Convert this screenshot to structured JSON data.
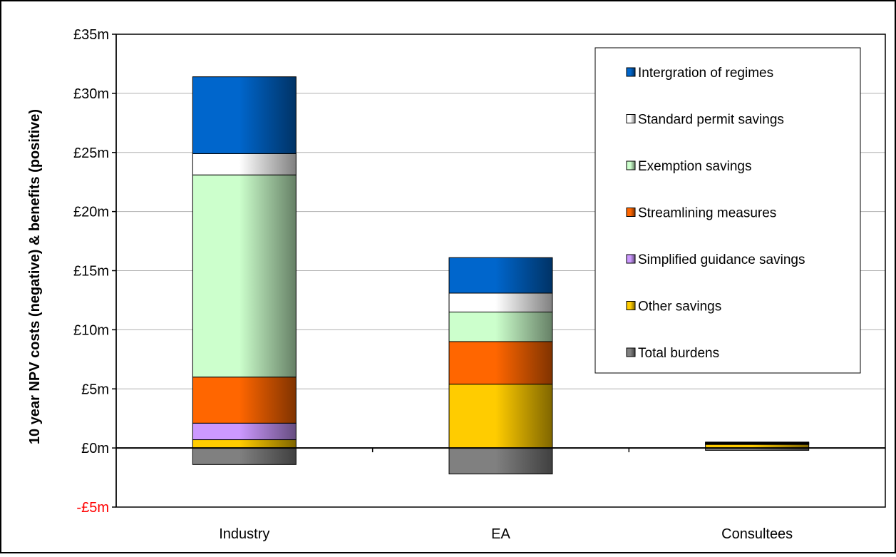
{
  "chart_data": {
    "type": "bar",
    "stacked": true,
    "ylabel": "10 year NPV costs (negative) & benefits (positive)",
    "xlabel": "",
    "categories": [
      "Industry",
      "EA",
      "Consultees"
    ],
    "ylim": [
      -5,
      35
    ],
    "yticks": [
      {
        "value": -5,
        "label": "-£5m",
        "color": "#ff0000"
      },
      {
        "value": 0,
        "label": "£0m"
      },
      {
        "value": 5,
        "label": "£5m"
      },
      {
        "value": 10,
        "label": "£10m"
      },
      {
        "value": 15,
        "label": "£15m"
      },
      {
        "value": 20,
        "label": "£20m"
      },
      {
        "value": 25,
        "label": "£25m"
      },
      {
        "value": 30,
        "label": "£30m"
      },
      {
        "value": 35,
        "label": "£35m"
      }
    ],
    "grid": true,
    "legend_position": "top-right",
    "series": [
      {
        "name": "Total burdens",
        "color": "#808080",
        "values": [
          -1.4,
          -2.2,
          -0.2
        ]
      },
      {
        "name": "Other savings",
        "color": "#ffcc00",
        "values": [
          0.7,
          5.4,
          0.3
        ]
      },
      {
        "name": "Simplified guidance savings",
        "color": "#cc99ff",
        "values": [
          1.4,
          0,
          0
        ]
      },
      {
        "name": "Streamlining measures",
        "color": "#ff6600",
        "values": [
          3.9,
          3.6,
          0.05
        ]
      },
      {
        "name": "Exemption savings",
        "color": "#ccffcc",
        "values": [
          17.1,
          2.5,
          0.05
        ]
      },
      {
        "name": "Standard permit savings",
        "color": "#ffffff",
        "values": [
          1.8,
          1.6,
          0.05
        ]
      },
      {
        "name": "Intergration of regimes",
        "color": "#0066cc",
        "values": [
          6.5,
          3.0,
          0.05
        ]
      }
    ],
    "legend_order": [
      "Intergration of regimes",
      "Standard permit savings",
      "Exemption savings",
      "Streamlining measures",
      "Simplified guidance savings",
      "Other savings",
      "Total burdens"
    ]
  }
}
